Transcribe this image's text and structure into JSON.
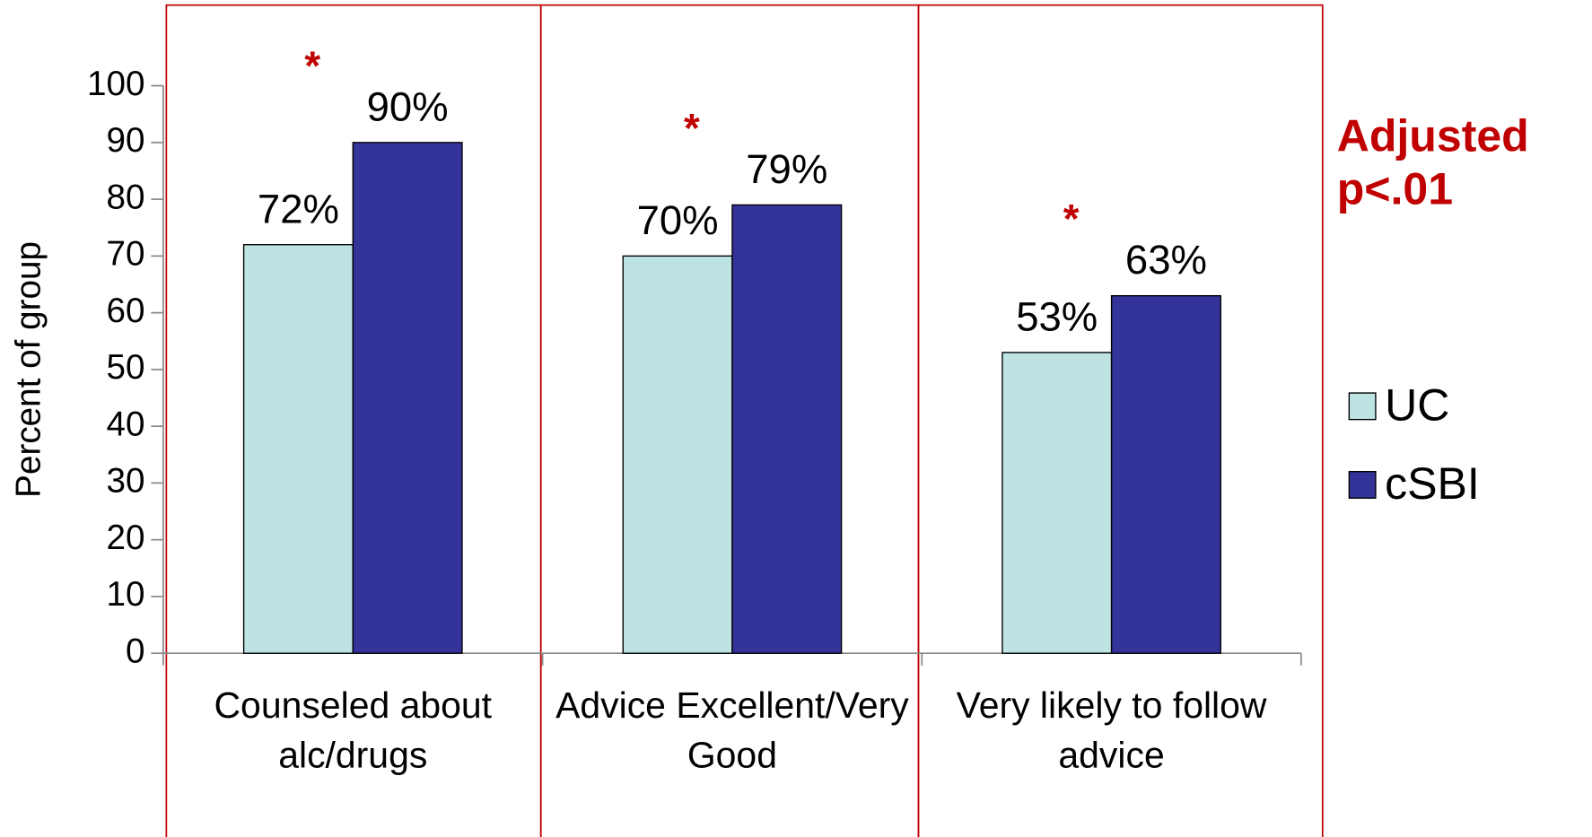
{
  "chart_data": {
    "type": "bar",
    "y_label": "Percent of group",
    "categories": [
      "Counseled about alc/drugs",
      "Advice Excellent/Very Good",
      "Very likely  to follow advice"
    ],
    "series": [
      {
        "name": "UC",
        "color": "#bde3e3",
        "values": [
          72,
          70,
          53
        ],
        "value_labels": [
          "72%",
          "70%",
          "53%"
        ]
      },
      {
        "name": "cSBI",
        "color": "#333399",
        "values": [
          90,
          79,
          63
        ],
        "value_labels": [
          "90%",
          "79%",
          "63%"
        ]
      }
    ],
    "markers": [
      "*",
      "*",
      "*"
    ],
    "annotation": "Adjusted p<.01",
    "ylim": [
      0,
      100
    ],
    "yticks": [
      0,
      10,
      20,
      30,
      40,
      50,
      60,
      70,
      80,
      90,
      100
    ],
    "grid": false,
    "legend": "right"
  }
}
